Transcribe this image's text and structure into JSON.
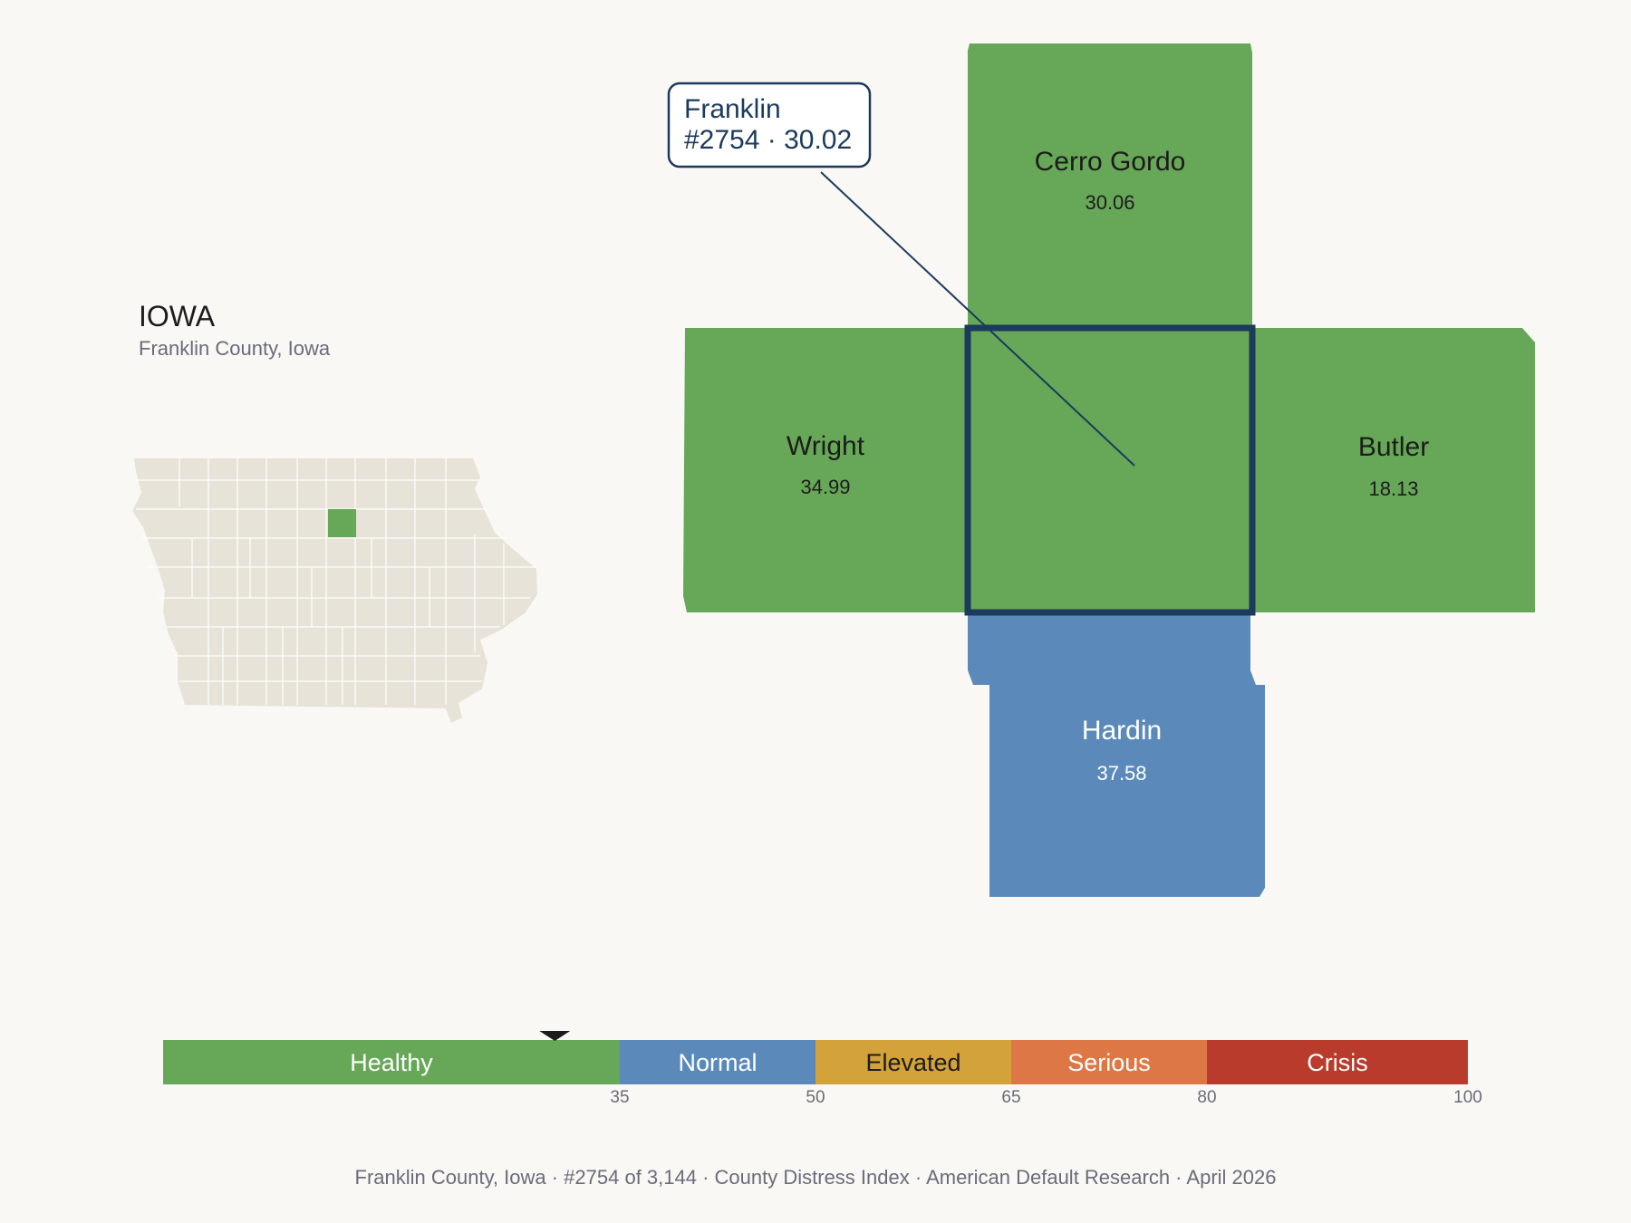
{
  "state": {
    "name": "IOWA",
    "subtitle": "Franklin County, Iowa"
  },
  "colors": {
    "healthy": "#67a758",
    "normal": "#5b8aba",
    "elevated": "#d3a23a",
    "serious": "#dd7745",
    "crisis": "#b93b2c",
    "state_fill": "#e8e3d8",
    "highlight_outline": "#1b3a5c"
  },
  "focus": {
    "county": "Franklin",
    "rank_line": "#2754 · 30.02",
    "score": 30.02
  },
  "neighbors": [
    {
      "id": "cerro-gordo",
      "name": "Cerro Gordo",
      "value": "30.06",
      "band": "healthy"
    },
    {
      "id": "wright",
      "name": "Wright",
      "value": "34.99",
      "band": "healthy"
    },
    {
      "id": "butler",
      "name": "Butler",
      "value": "18.13",
      "band": "healthy"
    },
    {
      "id": "hardin",
      "name": "Hardin",
      "value": "37.58",
      "band": "normal"
    }
  ],
  "scale": {
    "min": 0,
    "max": 100,
    "marker_value": 30.02,
    "bands": [
      {
        "label": "Healthy",
        "from": 0,
        "to": 35,
        "color": "#67a758",
        "text": "#ffffff"
      },
      {
        "label": "Normal",
        "from": 35,
        "to": 50,
        "color": "#5b8aba",
        "text": "#ffffff"
      },
      {
        "label": "Elevated",
        "from": 50,
        "to": 65,
        "color": "#d3a23a",
        "text": "#1c1c1c"
      },
      {
        "label": "Serious",
        "from": 65,
        "to": 80,
        "color": "#dd7745",
        "text": "#ffffff"
      },
      {
        "label": "Crisis",
        "from": 80,
        "to": 100,
        "color": "#b93b2c",
        "text": "#ffffff"
      }
    ],
    "ticks": [
      "35",
      "50",
      "65",
      "80",
      "100"
    ]
  },
  "footer": {
    "items": [
      "Franklin County, Iowa",
      "#2754 of 3,144",
      "County Distress Index",
      "American Default Research",
      "April 2026"
    ],
    "separator": "·"
  }
}
